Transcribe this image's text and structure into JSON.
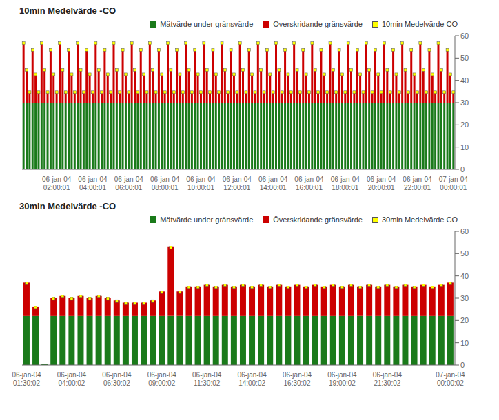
{
  "chart_data": [
    {
      "type": "bar",
      "title": "10min Medelvärde -CO",
      "stacked": true,
      "grid": false,
      "legend": "upper right",
      "ylim": [
        0,
        60
      ],
      "yticks": [
        0,
        10,
        20,
        30,
        40,
        50,
        60
      ],
      "categories": [
        null,
        null,
        null,
        null,
        null,
        null,
        null,
        null,
        null,
        null,
        null,
        "06-jan-04\n02:00:01",
        null,
        null,
        null,
        null,
        null,
        null,
        null,
        null,
        null,
        null,
        null,
        "06-jan-04\n04:00:01",
        null,
        null,
        null,
        null,
        null,
        null,
        null,
        null,
        null,
        null,
        null,
        "06-jan-04\n06:00:01",
        null,
        null,
        null,
        null,
        null,
        null,
        null,
        null,
        null,
        null,
        null,
        "06-jan-04\n08:00:01",
        null,
        null,
        null,
        null,
        null,
        null,
        null,
        null,
        null,
        null,
        null,
        "06-jan-04\n10:00:01",
        null,
        null,
        null,
        null,
        null,
        null,
        null,
        null,
        null,
        null,
        null,
        "06-jan-04\n12:00:01",
        null,
        null,
        null,
        null,
        null,
        null,
        null,
        null,
        null,
        null,
        null,
        "06-jan-04\n14:00:01",
        null,
        null,
        null,
        null,
        null,
        null,
        null,
        null,
        null,
        null,
        null,
        "06-jan-04\n16:00:01",
        null,
        null,
        null,
        null,
        null,
        null,
        null,
        null,
        null,
        null,
        null,
        "06-jan-04\n18:00:01",
        null,
        null,
        null,
        null,
        null,
        null,
        null,
        null,
        null,
        null,
        null,
        "06-jan-04\n20:00:01",
        null,
        null,
        null,
        null,
        null,
        null,
        null,
        null,
        null,
        null,
        null,
        "06-jan-04\n22:00:01",
        null,
        null,
        null,
        null,
        null,
        null,
        null,
        null,
        null,
        null,
        null,
        "07-jan-04\n00:00:01"
      ],
      "series": [
        {
          "name": "Mätvärde under gränsvärde",
          "color": "#1a7a1a",
          "values": [
            30,
            30,
            30,
            30,
            30,
            30,
            30,
            30,
            30,
            30,
            30,
            30,
            30,
            30,
            30,
            30,
            30,
            30,
            30,
            30,
            30,
            30,
            30,
            30,
            30,
            30,
            30,
            30,
            30,
            30,
            30,
            30,
            30,
            30,
            30,
            30,
            30,
            30,
            30,
            30,
            30,
            30,
            30,
            30,
            30,
            30,
            30,
            30,
            30,
            30,
            30,
            30,
            30,
            30,
            30,
            30,
            30,
            30,
            30,
            30,
            30,
            30,
            30,
            30,
            30,
            30,
            30,
            30,
            30,
            30,
            30,
            30,
            30,
            30,
            30,
            30,
            30,
            30,
            30,
            30,
            30,
            30,
            30,
            30,
            30,
            30,
            30,
            30,
            30,
            30,
            30,
            30,
            30,
            30,
            30,
            30,
            30,
            30,
            30,
            30,
            30,
            30,
            30,
            30,
            30,
            30,
            30,
            30,
            30,
            30,
            30,
            30,
            30,
            30,
            30,
            30,
            30,
            30,
            30,
            30,
            30,
            30,
            30,
            30,
            30,
            30,
            30,
            30,
            30,
            30,
            30,
            30,
            30,
            30,
            30,
            30,
            30,
            30,
            30,
            30,
            30,
            30,
            30,
            30
          ]
        },
        {
          "name": "Överskridande gränsvärde",
          "color": "#cc0000",
          "values": [
            27,
            15,
            5,
            24,
            13,
            5,
            27,
            15,
            5,
            24,
            13,
            5,
            27,
            15,
            5,
            24,
            13,
            5,
            27,
            15,
            5,
            24,
            13,
            5,
            27,
            15,
            5,
            24,
            13,
            5,
            27,
            15,
            5,
            24,
            13,
            5,
            27,
            15,
            5,
            24,
            13,
            5,
            27,
            15,
            5,
            24,
            13,
            5,
            27,
            15,
            5,
            24,
            13,
            5,
            27,
            15,
            5,
            24,
            13,
            5,
            27,
            15,
            5,
            24,
            13,
            5,
            27,
            15,
            5,
            24,
            13,
            5,
            27,
            15,
            5,
            24,
            13,
            5,
            27,
            15,
            5,
            24,
            13,
            5,
            27,
            15,
            5,
            24,
            13,
            5,
            27,
            15,
            5,
            24,
            13,
            5,
            27,
            15,
            5,
            24,
            13,
            5,
            27,
            15,
            5,
            24,
            13,
            5,
            27,
            15,
            5,
            24,
            13,
            5,
            27,
            15,
            5,
            24,
            13,
            5,
            27,
            15,
            5,
            24,
            13,
            5,
            27,
            15,
            5,
            24,
            13,
            5,
            27,
            15,
            5,
            24,
            13,
            5,
            27,
            15,
            5,
            24,
            13,
            5
          ]
        },
        {
          "name": "10min Medelvärde CO",
          "color": "#ffff00",
          "type": "scatter",
          "marker": "square",
          "values": [
            56.7,
            44.7,
            34.7,
            53.7,
            42.7,
            34.7,
            56.7,
            44.7,
            34.7,
            53.7,
            42.7,
            34.7,
            56.7,
            44.7,
            34.7,
            53.7,
            42.7,
            34.7,
            56.7,
            44.7,
            34.7,
            53.7,
            42.7,
            34.7,
            56.7,
            44.7,
            34.7,
            53.7,
            42.7,
            34.7,
            56.7,
            44.7,
            34.7,
            53.7,
            42.7,
            34.7,
            56.7,
            44.7,
            34.7,
            53.7,
            42.7,
            34.7,
            56.7,
            44.7,
            34.7,
            53.7,
            42.7,
            34.7,
            56.7,
            44.7,
            34.7,
            53.7,
            42.7,
            34.7,
            56.7,
            44.7,
            34.7,
            53.7,
            42.7,
            34.7,
            56.7,
            44.7,
            34.7,
            53.7,
            42.7,
            34.7,
            56.7,
            44.7,
            34.7,
            53.7,
            42.7,
            34.7,
            56.7,
            44.7,
            34.7,
            53.7,
            42.7,
            34.7,
            56.7,
            44.7,
            34.7,
            53.7,
            42.7,
            34.7,
            56.7,
            44.7,
            34.7,
            53.7,
            42.7,
            34.7,
            56.7,
            44.7,
            34.7,
            53.7,
            42.7,
            34.7,
            56.7,
            44.7,
            34.7,
            53.7,
            42.7,
            34.7,
            56.7,
            44.7,
            34.7,
            53.7,
            42.7,
            34.7,
            56.7,
            44.7,
            34.7,
            53.7,
            42.7,
            34.7,
            56.7,
            44.7,
            34.7,
            53.7,
            42.7,
            34.7,
            56.7,
            44.7,
            34.7,
            53.7,
            42.7,
            34.7,
            56.7,
            44.7,
            34.7,
            53.7,
            42.7,
            34.7,
            56.7,
            44.7,
            34.7,
            53.7,
            42.7,
            34.7,
            56.7,
            44.7,
            34.7,
            53.7,
            42.7,
            34.7
          ]
        }
      ]
    },
    {
      "type": "bar",
      "title": "30min Medelvärde -CO",
      "stacked": true,
      "grid": false,
      "legend": "upper right",
      "ylim": [
        0,
        60
      ],
      "yticks": [
        0,
        10,
        20,
        30,
        40,
        50,
        60
      ],
      "categories": [
        "06-jan-04\n01:30:02",
        null,
        null,
        null,
        null,
        "06-jan-04\n04:00:02",
        null,
        null,
        null,
        null,
        "06-jan-04\n06:30:02",
        null,
        null,
        null,
        null,
        "06-jan-04\n09:00:02",
        null,
        null,
        null,
        null,
        "06-jan-04\n11:30:02",
        null,
        null,
        null,
        null,
        "06-jan-04\n14:00:02",
        null,
        null,
        null,
        null,
        "06-jan-04\n16:30:02",
        null,
        null,
        null,
        null,
        "06-jan-04\n19:00:02",
        null,
        null,
        null,
        null,
        "06-jan-04\n21:30:02",
        null,
        null,
        null,
        null,
        null,
        null,
        "07-jan-04\n00:00:02"
      ],
      "series": [
        {
          "name": "Mätvärde under gränsvärde",
          "color": "#1a7a1a",
          "values": [
            22,
            22,
            0.3,
            22,
            22,
            22,
            22,
            22,
            22,
            22,
            22,
            22,
            22,
            22,
            22,
            22,
            22,
            22,
            22,
            22,
            22,
            22,
            22,
            22,
            22,
            22,
            22,
            22,
            22,
            22,
            22,
            22,
            22,
            22,
            22,
            22,
            22,
            22,
            22,
            22,
            22,
            22,
            22,
            22,
            22,
            22,
            22,
            22
          ]
        },
        {
          "name": "Överskridande gränsvärde",
          "color": "#cc0000",
          "values": [
            15,
            4,
            0,
            8,
            9,
            8,
            9,
            8,
            9,
            8,
            7,
            6,
            6,
            6,
            7,
            11,
            31,
            11,
            13,
            13,
            14,
            13,
            14,
            13,
            14,
            13,
            14,
            13,
            14,
            13,
            14,
            13,
            14,
            13,
            14,
            13,
            14,
            13,
            14,
            13,
            14,
            13,
            14,
            13,
            14,
            13,
            14,
            15
          ]
        },
        {
          "name": "30min Medelvärde CO",
          "color": "#ffff00",
          "type": "scatter",
          "marker": "square",
          "values": [
            36.7,
            25.7,
            null,
            29.7,
            30.7,
            29.7,
            30.7,
            29.7,
            30.7,
            29.7,
            28.7,
            27.7,
            27.7,
            27.7,
            28.7,
            32.7,
            52.7,
            32.7,
            34.7,
            34.7,
            35.7,
            34.7,
            35.7,
            34.7,
            35.7,
            34.7,
            35.7,
            34.7,
            35.7,
            34.7,
            35.7,
            34.7,
            35.7,
            34.7,
            35.7,
            34.7,
            35.7,
            34.7,
            35.7,
            34.7,
            35.7,
            34.7,
            35.7,
            34.7,
            35.7,
            34.7,
            35.7,
            36.7
          ]
        }
      ]
    }
  ]
}
